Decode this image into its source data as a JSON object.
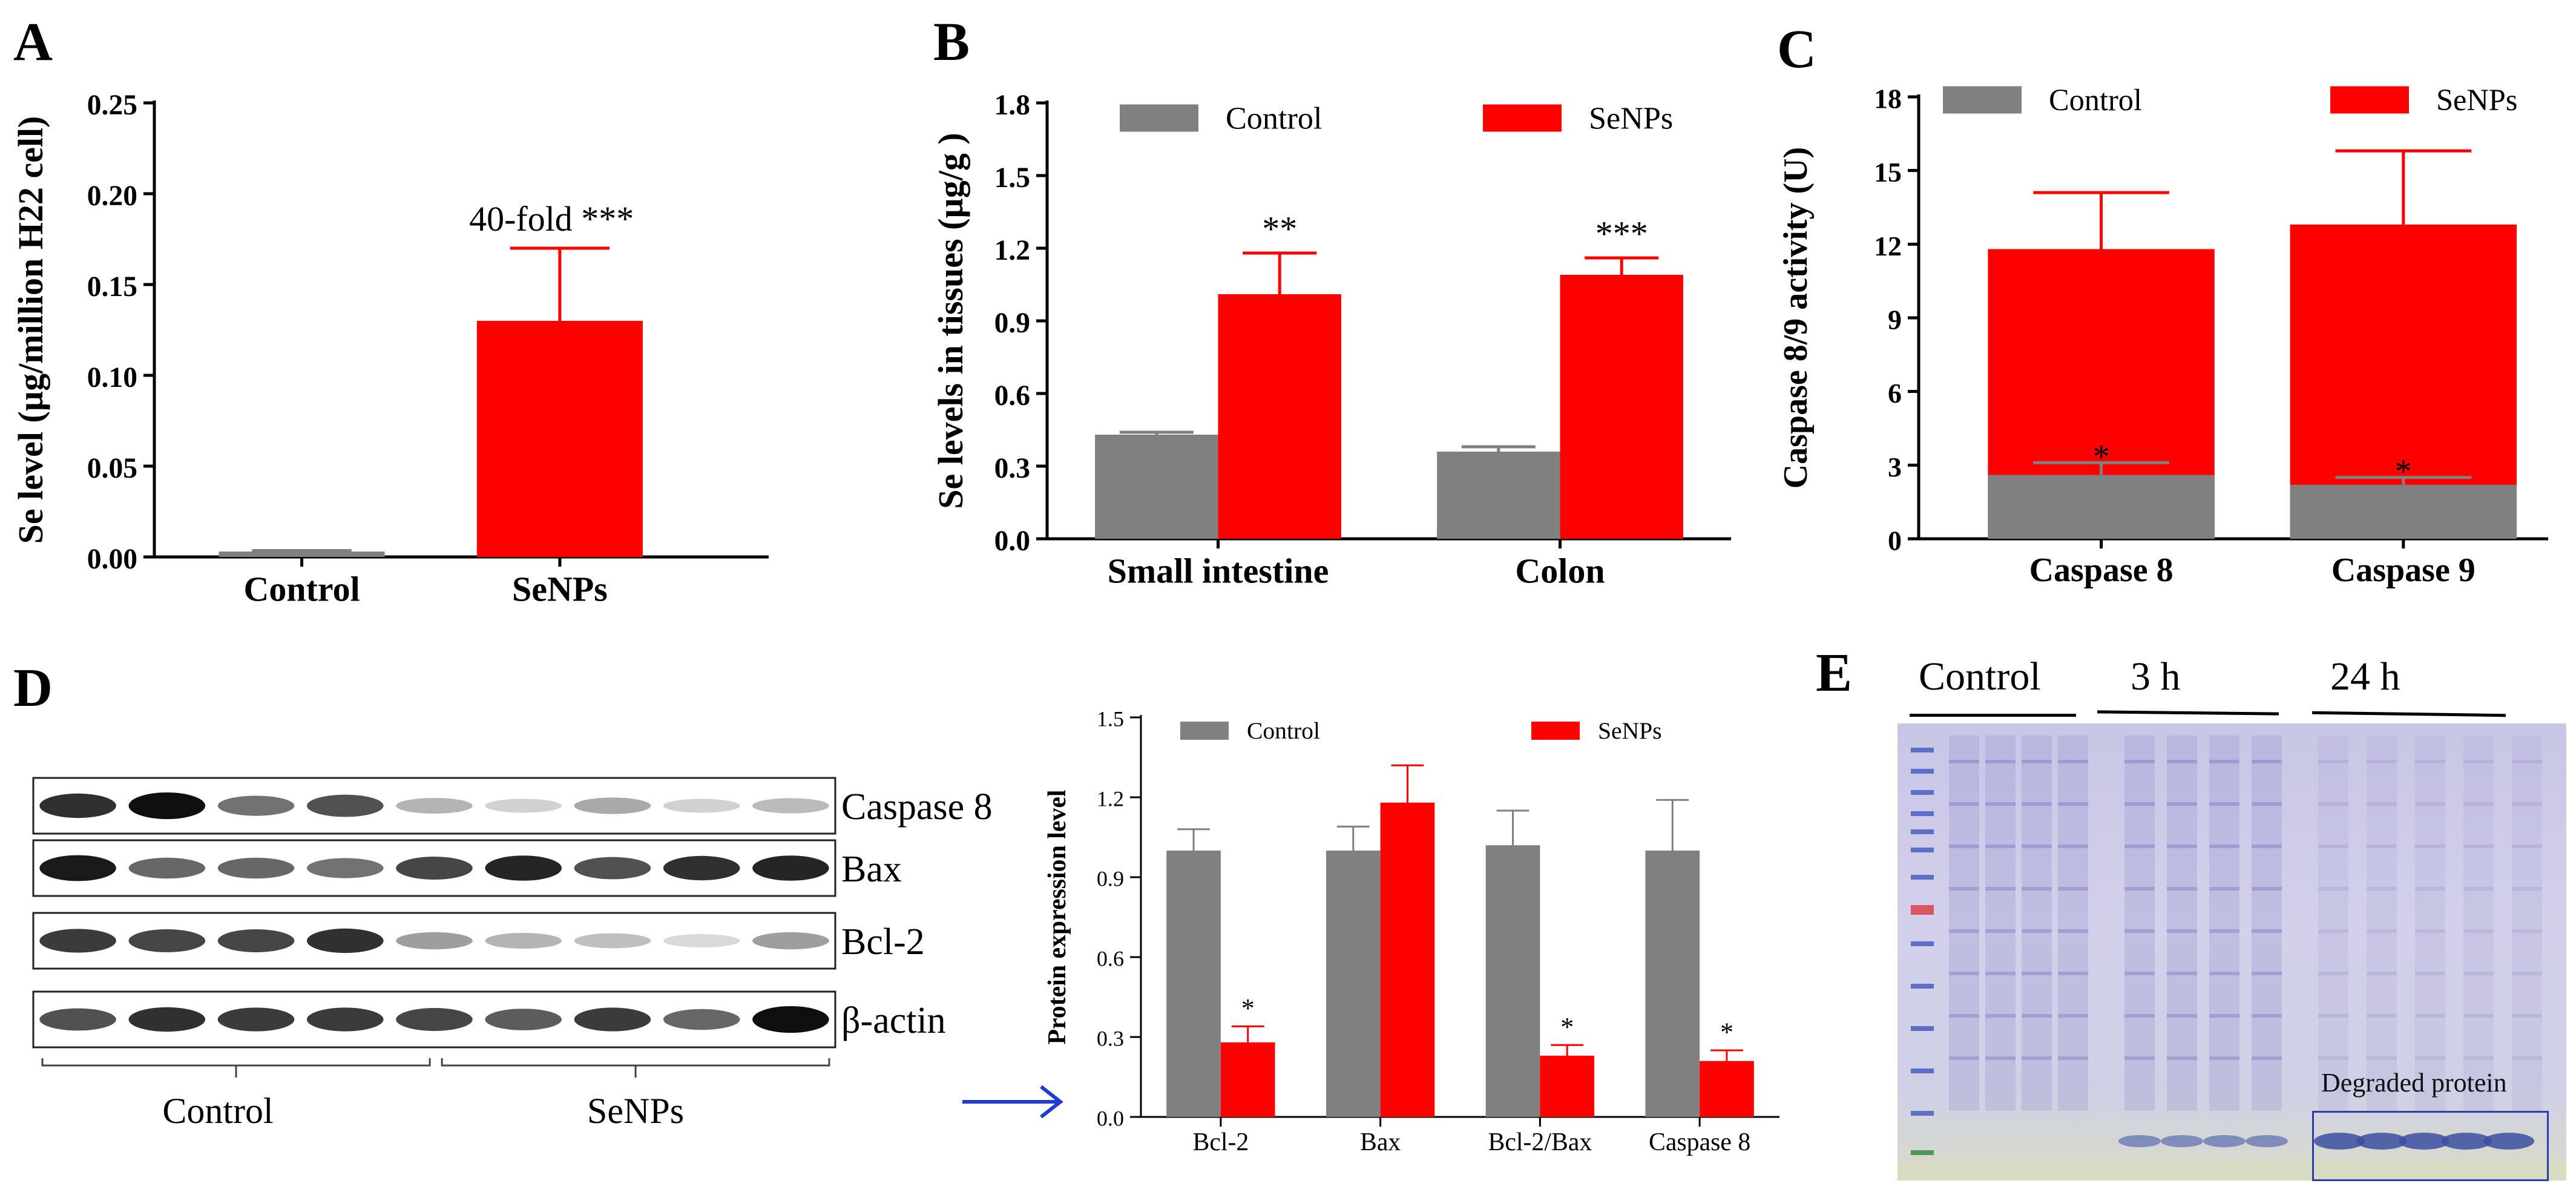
{
  "colors": {
    "control": "#808080",
    "senps": "#ff0000",
    "axis": "#000000",
    "arrow": "#1f3bd6",
    "box": "#2a3cb0"
  },
  "panels": {
    "A": "A",
    "B": "B",
    "C": "C",
    "D": "D",
    "E": "E"
  },
  "chart_data": [
    {
      "id": "A",
      "type": "bar",
      "ylabel": "Se level (µg/million H22 cell)",
      "categories": [
        "Control",
        "SeNPs"
      ],
      "values": [
        0.003,
        0.13
      ],
      "errors": [
        0.0005,
        0.04
      ],
      "colors": [
        "control",
        "senps"
      ],
      "ylim": [
        0,
        0.25
      ],
      "yticks": [
        "0.00",
        "0.05",
        "0.10",
        "0.15",
        "0.20",
        "0.25"
      ],
      "annotations": [
        "",
        "40-fold ***"
      ]
    },
    {
      "id": "B",
      "type": "bar",
      "ylabel": "Se levels in tissues (µg/g )",
      "categories": [
        "Small intestine",
        "Colon"
      ],
      "series": [
        {
          "name": "Control",
          "color": "control",
          "values": [
            0.43,
            0.36
          ],
          "errors": [
            0.01,
            0.02
          ]
        },
        {
          "name": "SeNPs",
          "color": "senps",
          "values": [
            1.01,
            1.09
          ],
          "errors": [
            0.17,
            0.07
          ]
        }
      ],
      "ylim": [
        0,
        1.8
      ],
      "yticks": [
        "0.0",
        "0.3",
        "0.6",
        "0.9",
        "1.2",
        "1.5",
        "1.8"
      ],
      "annotations": [
        "**",
        "***"
      ]
    },
    {
      "id": "C",
      "type": "bar",
      "ylabel": "Caspase 8/9 activity (U)",
      "categories": [
        "Caspase 8",
        "Caspase 9"
      ],
      "series": [
        {
          "name": "Control",
          "color": "control",
          "values": [
            2.6,
            2.2
          ],
          "errors": [
            0.5,
            0.3
          ]
        },
        {
          "name": "SeNPs",
          "color": "senps",
          "values": [
            11.8,
            12.8
          ],
          "errors": [
            2.3,
            3.0
          ]
        }
      ],
      "ylim": [
        0,
        18
      ],
      "yticks": [
        "0",
        "3",
        "6",
        "9",
        "12",
        "15",
        "18"
      ],
      "annotations": [
        "*",
        "*"
      ]
    },
    {
      "id": "D",
      "type": "bar",
      "ylabel": "Protein expression level",
      "categories": [
        "Bcl-2",
        "Bax",
        "Bcl-2/Bax",
        "Caspase 8"
      ],
      "series": [
        {
          "name": "Control",
          "color": "control",
          "values": [
            1.0,
            1.0,
            1.02,
            1.0
          ],
          "errors": [
            0.08,
            0.09,
            0.13,
            0.19
          ]
        },
        {
          "name": "SeNPs",
          "color": "senps",
          "values": [
            0.28,
            1.18,
            0.23,
            0.21
          ],
          "errors": [
            0.06,
            0.14,
            0.04,
            0.04
          ]
        }
      ],
      "ylim": [
        0,
        1.5
      ],
      "yticks": [
        "0.0",
        "0.3",
        "0.6",
        "0.9",
        "1.2",
        "1.5"
      ],
      "annotations": [
        "*",
        "",
        "*",
        "*"
      ]
    }
  ],
  "blot": {
    "rows": [
      "Caspase 8",
      "Bax",
      "Bcl-2",
      "β-actin"
    ],
    "groups": [
      "Control",
      "SeNPs"
    ],
    "lanes": 9,
    "intensities": [
      [
        0.85,
        1.0,
        0.55,
        0.7,
        0.25,
        0.12,
        0.3,
        0.12,
        0.22
      ],
      [
        0.95,
        0.6,
        0.6,
        0.55,
        0.75,
        0.9,
        0.7,
        0.85,
        0.9
      ],
      [
        0.8,
        0.75,
        0.75,
        0.85,
        0.35,
        0.25,
        0.2,
        0.08,
        0.35
      ],
      [
        0.7,
        0.85,
        0.8,
        0.8,
        0.75,
        0.65,
        0.8,
        0.6,
        1.0
      ]
    ]
  },
  "gel": {
    "labels": [
      "Control",
      "3 h",
      "24 h"
    ],
    "box_label": "Degraded protein"
  }
}
